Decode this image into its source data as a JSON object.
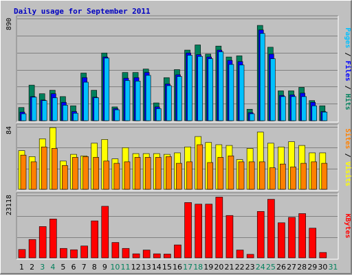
{
  "chart_data": [
    {
      "type": "bar",
      "title": "Daily usage for September 2011",
      "ylabel_parts": [
        {
          "text": "Pages",
          "color": "#00c0ff"
        },
        {
          "text": " / ",
          "color": "#000000"
        },
        {
          "text": "Files",
          "color": "#0000ff"
        },
        {
          "text": " / ",
          "color": "#000000"
        },
        {
          "text": "Hits",
          "color": "#00805c"
        }
      ],
      "ymax_label": "890",
      "ylim": [
        0,
        890
      ],
      "grid": true,
      "categories": [
        "1",
        "2",
        "3",
        "4",
        "5",
        "6",
        "7",
        "8",
        "9",
        "10",
        "11",
        "12",
        "13",
        "14",
        "15",
        "16",
        "17",
        "18",
        "19",
        "20",
        "21",
        "22",
        "23",
        "24",
        "25",
        "26",
        "27",
        "28",
        "29",
        "30",
        "31"
      ],
      "weekend_days": [
        3,
        4,
        10,
        11,
        17,
        18,
        24,
        25,
        31
      ],
      "series": [
        {
          "name": "Hits",
          "color": "#00805c",
          "values": [
            115,
            310,
            235,
            265,
            210,
            130,
            415,
            265,
            590,
            120,
            420,
            420,
            450,
            155,
            375,
            445,
            615,
            660,
            580,
            650,
            555,
            565,
            100,
            830,
            640,
            260,
            260,
            290,
            175,
            130,
            0
          ]
        },
        {
          "name": "Files",
          "color": "#0000ff",
          "values": [
            75,
            210,
            180,
            235,
            160,
            80,
            375,
            205,
            555,
            105,
            370,
            375,
            420,
            120,
            320,
            400,
            590,
            575,
            555,
            615,
            525,
            515,
            70,
            790,
            580,
            220,
            225,
            240,
            160,
            80,
            0
          ]
        },
        {
          "name": "Pages",
          "color": "#00c0ff",
          "values": [
            60,
            205,
            175,
            200,
            135,
            65,
            335,
            200,
            545,
            95,
            350,
            345,
            395,
            105,
            305,
            385,
            570,
            560,
            540,
            600,
            490,
            485,
            60,
            760,
            540,
            210,
            210,
            210,
            130,
            75,
            0
          ]
        }
      ]
    },
    {
      "type": "bar",
      "ylabel_parts": [
        {
          "text": "Sites",
          "color": "#ff8000"
        },
        {
          "text": " / ",
          "color": "#000000"
        },
        {
          "text": "Visits",
          "color": "#ffff00"
        }
      ],
      "ymax_label": "84",
      "ylim": [
        0,
        84
      ],
      "grid": true,
      "categories": [
        "1",
        "2",
        "3",
        "4",
        "5",
        "6",
        "7",
        "8",
        "9",
        "10",
        "11",
        "12",
        "13",
        "14",
        "15",
        "16",
        "17",
        "18",
        "19",
        "20",
        "21",
        "22",
        "23",
        "24",
        "25",
        "26",
        "27",
        "28",
        "29",
        "30",
        "31"
      ],
      "series": [
        {
          "name": "Visits",
          "color": "#ffff00",
          "values": [
            52,
            44,
            68,
            83,
            38,
            47,
            45,
            62,
            67,
            41,
            56,
            48,
            48,
            48,
            47,
            49,
            57,
            71,
            63,
            60,
            59,
            40,
            55,
            77,
            62,
            57,
            64,
            59,
            49,
            49,
            0
          ]
        },
        {
          "name": "Sites",
          "color": "#ff8000",
          "values": [
            46,
            37,
            57,
            55,
            32,
            43,
            44,
            43,
            38,
            35,
            37,
            43,
            43,
            43,
            44,
            35,
            37,
            60,
            36,
            43,
            45,
            37,
            37,
            37,
            29,
            34,
            30,
            35,
            37,
            35,
            0
          ]
        }
      ]
    },
    {
      "type": "bar",
      "ylabel_parts": [
        {
          "text": "KBytes",
          "color": "#ff0000"
        }
      ],
      "ymax_label": "23118",
      "ylim": [
        0,
        23118
      ],
      "grid": true,
      "categories": [
        "1",
        "2",
        "3",
        "4",
        "5",
        "6",
        "7",
        "8",
        "9",
        "10",
        "11",
        "12",
        "13",
        "14",
        "15",
        "16",
        "17",
        "18",
        "19",
        "20",
        "21",
        "22",
        "23",
        "24",
        "25",
        "26",
        "27",
        "28",
        "29",
        "30",
        "31"
      ],
      "series": [
        {
          "name": "KBytes",
          "color": "#ff0000",
          "values": [
            3100,
            6800,
            11600,
            14400,
            3500,
            3000,
            4400,
            13700,
            19100,
            5700,
            3500,
            1500,
            2900,
            1500,
            1400,
            4800,
            20500,
            19900,
            19900,
            22500,
            15700,
            2900,
            1300,
            17200,
            21700,
            13000,
            15000,
            16400,
            11000,
            2000,
            0
          ]
        }
      ]
    }
  ]
}
